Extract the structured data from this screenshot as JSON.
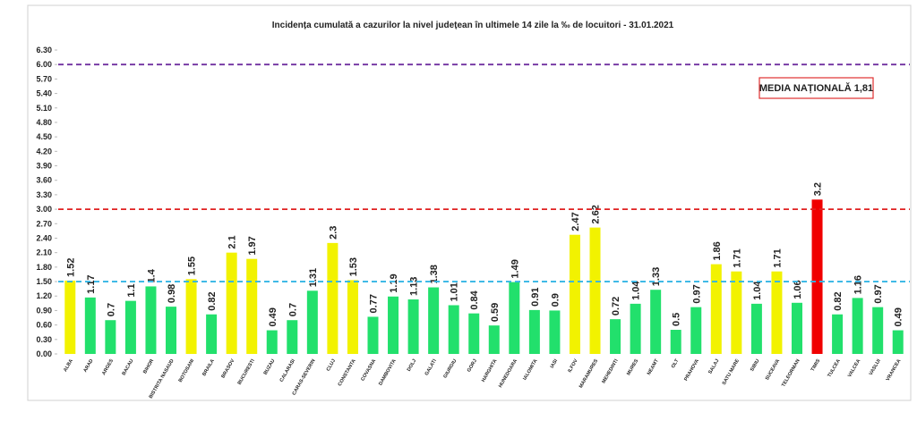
{
  "chart_data": {
    "type": "bar",
    "title": "Incidența cumulată a cazurilor la nivel județean în ultimele 14 zile   la ‰ de locuitori  - 31.01.2021",
    "categories": [
      "ALBA",
      "ARAD",
      "ARGES",
      "BACAU",
      "BIHOR",
      "BISTRITA NASAUD",
      "BOTOSANI",
      "BRAILA",
      "BRASOV",
      "BUCURESTI",
      "BUZAU",
      "CALARASI",
      "CARAS-SEVERIN",
      "CLUJ",
      "CONSTANTA",
      "COVASNA",
      "DAMBOVITA",
      "DOLJ",
      "GALATI",
      "GIURGIU",
      "GORJ",
      "HARGHITA",
      "HUNEDOARA",
      "IALOMITA",
      "IASI",
      "ILFOV",
      "MARAMURES",
      "MEHEDINTI",
      "MURES",
      "NEAMT",
      "OLT",
      "PRAHOVA",
      "SALAJ",
      "SATU MARE",
      "SIBIU",
      "SUCEAVA",
      "TELEORMAN",
      "TIMIS",
      "TULCEA",
      "VALCEA",
      "VASLUI",
      "VRANCEA"
    ],
    "values": [
      1.52,
      1.17,
      0.7,
      1.1,
      1.4,
      0.98,
      1.55,
      0.82,
      2.1,
      1.97,
      0.49,
      0.7,
      1.31,
      2.3,
      1.53,
      0.77,
      1.19,
      1.13,
      1.38,
      1.01,
      0.84,
      0.59,
      1.49,
      0.91,
      0.9,
      2.47,
      2.62,
      0.72,
      1.04,
      1.33,
      0.5,
      0.97,
      1.86,
      1.71,
      1.04,
      1.71,
      1.06,
      3.2,
      0.82,
      1.16,
      0.97,
      0.49
    ],
    "colors": [
      "#f2f200",
      "#22e06c",
      "#22e06c",
      "#22e06c",
      "#22e06c",
      "#22e06c",
      "#f2f200",
      "#22e06c",
      "#f2f200",
      "#f2f200",
      "#22e06c",
      "#22e06c",
      "#22e06c",
      "#f2f200",
      "#f2f200",
      "#22e06c",
      "#22e06c",
      "#22e06c",
      "#22e06c",
      "#22e06c",
      "#22e06c",
      "#22e06c",
      "#22e06c",
      "#22e06c",
      "#22e06c",
      "#f2f200",
      "#f2f200",
      "#22e06c",
      "#22e06c",
      "#22e06c",
      "#22e06c",
      "#22e06c",
      "#f2f200",
      "#f2f200",
      "#22e06c",
      "#f2f200",
      "#22e06c",
      "#f00000",
      "#22e06c",
      "#22e06c",
      "#22e06c",
      "#22e06c"
    ],
    "ylim": [
      0,
      6.3
    ],
    "yticks": [
      {
        "value": 0,
        "label": "0.00"
      },
      {
        "value": 0.3,
        "label": "0.30"
      },
      {
        "value": 0.6,
        "label": "0.60"
      },
      {
        "value": 0.9,
        "label": "0.90"
      },
      {
        "value": 1.2,
        "label": "1.20"
      },
      {
        "value": 1.5,
        "label": "1.50"
      },
      {
        "value": 1.8,
        "label": "1.80"
      },
      {
        "value": 2.1,
        "label": "2.10"
      },
      {
        "value": 2.4,
        "label": "2.40"
      },
      {
        "value": 2.7,
        "label": "2.70"
      },
      {
        "value": 3,
        "label": "3.00"
      },
      {
        "value": 3.3,
        "label": "3.30"
      },
      {
        "value": 3.6,
        "label": "3.60"
      },
      {
        "value": 3.9,
        "label": "3.90"
      },
      {
        "value": 4.2,
        "label": "4.20"
      },
      {
        "value": 4.5,
        "label": "4.50"
      },
      {
        "value": 4.8,
        "label": "4.80"
      },
      {
        "value": 5.1,
        "label": "5.10"
      },
      {
        "value": 5.4,
        "label": "5.40"
      },
      {
        "value": 5.7,
        "label": "5.70"
      },
      {
        "value": 6,
        "label": "6.00"
      },
      {
        "value": 6.3,
        "label": "6.30"
      }
    ],
    "reference_lines": [
      {
        "value": 6,
        "color": "#7030a0"
      },
      {
        "value": 3,
        "color": "#e02020"
      },
      {
        "value": 1.5,
        "color": "#33b5e5"
      }
    ],
    "annotation": "MEDIA NAȚIONALĂ 1,81"
  }
}
